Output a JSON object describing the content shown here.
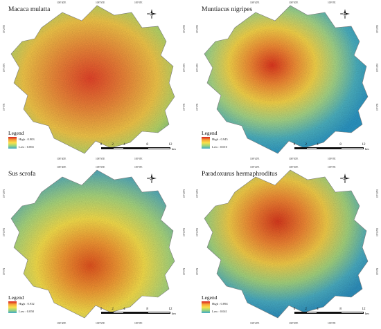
{
  "panels": [
    {
      "species": "Macaca mulatta",
      "legend": {
        "title": "Legend",
        "high": "High : 0.903",
        "low": "Low : 0.065"
      },
      "top_ticks": [
        "108°40'E",
        "108°50'E",
        "109°0'E"
      ],
      "bottom_ticks": [
        "108°40'E",
        "108°50'E",
        "109°0'E"
      ],
      "left_ticks": [
        "19°20'N",
        "19°10'N",
        "19°0'N"
      ],
      "right_ticks": [
        "19°20'N",
        "19°10'N",
        "19°0'N"
      ]
    },
    {
      "species": "Muntiacus nigripes",
      "legend": {
        "title": "Legend",
        "high": "High : 0.945",
        "low": "Low : 0.010"
      },
      "top_ticks": [
        "108°40'E",
        "108°50'E",
        "109°0'E"
      ],
      "bottom_ticks": [
        "108°40'E",
        "108°50'E",
        "109°0'E"
      ],
      "left_ticks": [
        "19°20'N",
        "19°10'N",
        "19°0'N"
      ],
      "right_ticks": [
        "19°20'N",
        "19°10'N",
        "19°0'N"
      ]
    },
    {
      "species": "Sus scrofa",
      "legend": {
        "title": "Legend",
        "high": "High : 0.932",
        "low": "Low : 0.058"
      },
      "top_ticks": [
        "108°40'E",
        "108°50'E",
        "109°0'E"
      ],
      "bottom_ticks": [
        "108°40'E",
        "108°50'E",
        "109°0'E"
      ],
      "left_ticks": [
        "19°20'N",
        "19°10'N",
        "19°0'N"
      ],
      "right_ticks": [
        "19°20'N",
        "19°10'N",
        "19°0'N"
      ]
    },
    {
      "species": "Paradoxurus hermaphroditus",
      "legend": {
        "title": "Legend",
        "high": "High : 0.894",
        "low": "Low : 0.041"
      },
      "top_ticks": [
        "108°40'E",
        "108°50'E",
        "109°0'E"
      ],
      "bottom_ticks": [
        "108°40'E",
        "108°50'E",
        "109°0'E"
      ],
      "left_ticks": [
        "19°20'N",
        "19°10'N",
        "19°0'N"
      ],
      "right_ticks": [
        "19°20'N",
        "19°10'N",
        "19°0'N"
      ]
    }
  ],
  "scale_bar": {
    "labels": [
      "0",
      "2",
      "4",
      "8",
      "12"
    ],
    "unit": "km"
  },
  "colors": {
    "high": "#d7191c",
    "mid_high": "#f5a23a",
    "mid": "#fbe04a",
    "mid_low": "#9fd67a",
    "low": "#3fa8c9"
  }
}
